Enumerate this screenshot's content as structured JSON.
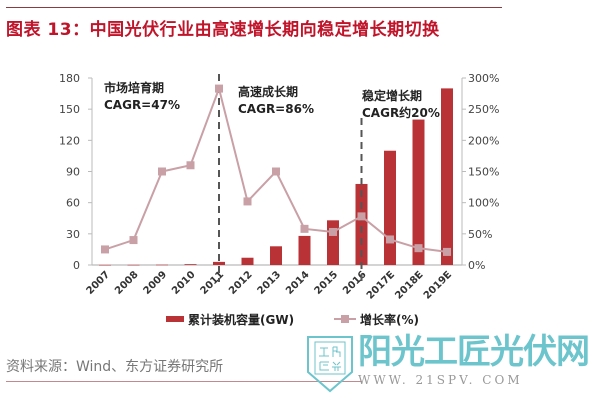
{
  "title": "图表 13：中国光伏行业由高速增长期向稳定增长期切换",
  "source": "资料来源：Wind、东方证券研究所",
  "watermark": {
    "logo_text": "工陽匠光",
    "brand": "阳光工匠光伏网",
    "url": "WWW. 21SPV. COM"
  },
  "chart_data": {
    "type": "bar+line",
    "categories": [
      "2007",
      "2008",
      "2009",
      "2010",
      "2011",
      "2012",
      "2013",
      "2014",
      "2015",
      "2016",
      "2017E",
      "2018E",
      "2019E"
    ],
    "series": [
      {
        "name": "累计装机容量(GW)",
        "type": "bar",
        "axis": "left",
        "color": "#b83236",
        "values": [
          0.1,
          0.15,
          0.3,
          0.8,
          3,
          7,
          18,
          28,
          43,
          78,
          110,
          140,
          170
        ]
      },
      {
        "name": "增长率(%)",
        "type": "line",
        "axis": "right",
        "color": "#c9a0a6",
        "values": [
          25,
          40,
          150,
          160,
          283,
          102,
          150,
          58,
          53,
          78,
          41,
          27,
          21
        ]
      }
    ],
    "left_axis": {
      "range": [
        0,
        180
      ],
      "ticks": [
        "0",
        "30",
        "60",
        "90",
        "120",
        "150",
        "180"
      ]
    },
    "right_axis": {
      "range": [
        0,
        300
      ],
      "ticks": [
        "0%",
        "50%",
        "100%",
        "150%",
        "200%",
        "250%",
        "300%"
      ]
    },
    "annotations": [
      {
        "line1": "市场培育期",
        "line2": "CAGR=47%"
      },
      {
        "line1": "高速成长期",
        "line2": "CAGR=86%"
      },
      {
        "line1": "稳定增长期",
        "line2": "CAGR约20%"
      }
    ],
    "period_dividers": [
      "2011",
      "2016"
    ],
    "grid": false,
    "legend_position": "bottom"
  }
}
